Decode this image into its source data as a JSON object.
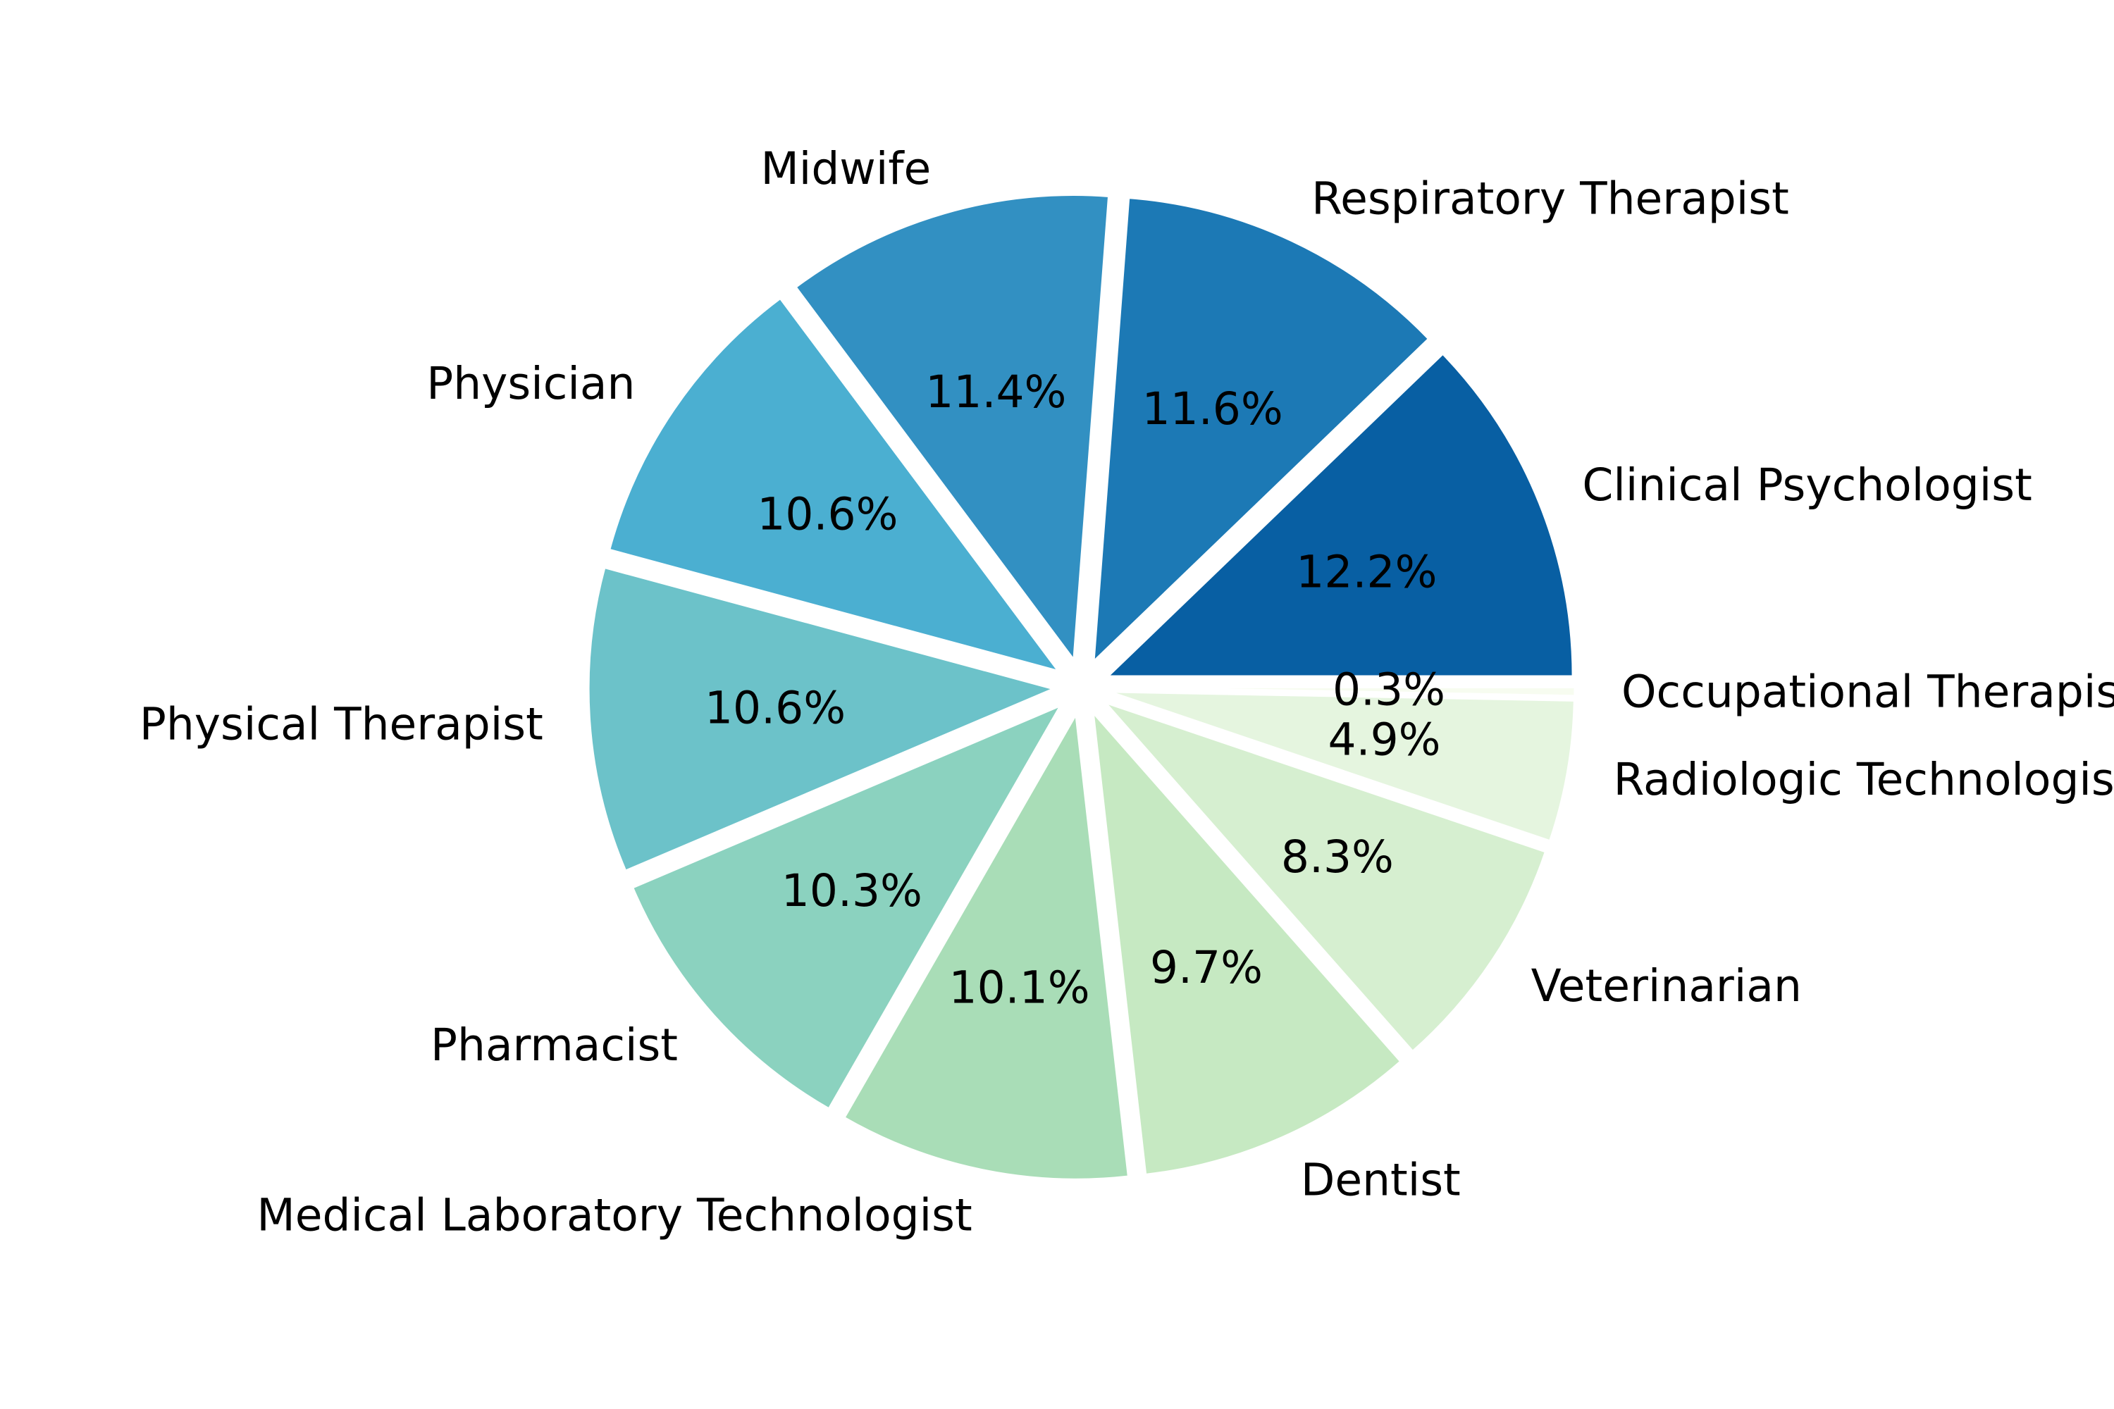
{
  "chart_data": {
    "type": "pie",
    "title": "",
    "start_angle_deg": 0,
    "direction": "counterclockwise",
    "exploded": true,
    "legend": "none",
    "categories": [
      "Clinical Psychologist",
      "Respiratory Therapist",
      "Midwife",
      "Physician",
      "Physical Therapist",
      "Pharmacist",
      "Medical Laboratory Technologist",
      "Dentist",
      "Veterinarian",
      "Radiologic Technologist",
      "Occupational Therapist"
    ],
    "values": [
      12.2,
      11.6,
      11.4,
      10.6,
      10.6,
      10.3,
      10.1,
      9.7,
      8.3,
      4.9,
      0.3
    ],
    "percent_labels": [
      "12.2%",
      "11.6%",
      "11.4%",
      "10.6%",
      "10.6%",
      "10.3%",
      "10.1%",
      "9.7%",
      "8.3%",
      "4.9%",
      "0.3%"
    ],
    "colors": [
      "#085fa3",
      "#1c79b5",
      "#3290c2",
      "#4bafd1",
      "#6cc2c9",
      "#8bd2bf",
      "#a9ddb7",
      "#c6e9c2",
      "#d6efd0",
      "#e5f5df",
      "#f7fcf0"
    ]
  }
}
